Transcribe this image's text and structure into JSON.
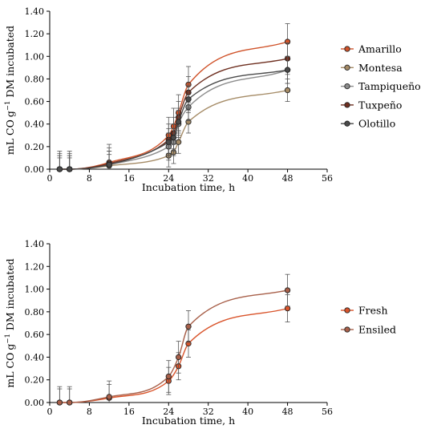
{
  "chart_data": [
    {
      "type": "line",
      "xlabel": "Incubation time, h",
      "ylabel_parts": [
        "mL CO",
        "g",
        "−1",
        " DM incubated"
      ],
      "xlim": [
        0,
        56
      ],
      "ylim": [
        0,
        1.4
      ],
      "xticks": [
        "0",
        "8",
        "16",
        "24",
        "32",
        "40",
        "48",
        "56"
      ],
      "yticks": [
        "0.00",
        "0.20",
        "0.40",
        "0.60",
        "0.80",
        "1.00",
        "1.20",
        "1.40"
      ],
      "grid": false,
      "legend_position": "right",
      "x": [
        2,
        4,
        12,
        24,
        25,
        26,
        28,
        48
      ],
      "series": [
        {
          "name": "Amarillo",
          "color": "#d0532a",
          "values": [
            0.0,
            0.0,
            0.06,
            0.3,
            0.38,
            0.5,
            0.75,
            1.13
          ],
          "errors": [
            0.16,
            0.16,
            0.16,
            0.16,
            0.16,
            0.16,
            0.16,
            0.16
          ]
        },
        {
          "name": "Montesa",
          "color": "#a58b66",
          "values": [
            0.0,
            0.0,
            0.03,
            0.12,
            0.15,
            0.24,
            0.42,
            0.7
          ],
          "errors": [
            0.1,
            0.1,
            0.1,
            0.1,
            0.1,
            0.1,
            0.1,
            0.1
          ]
        },
        {
          "name": "Tampiqueño",
          "color": "#8c8c8c",
          "values": [
            0.0,
            0.0,
            0.04,
            0.2,
            0.24,
            0.4,
            0.55,
            0.88
          ],
          "errors": [
            0.12,
            0.12,
            0.12,
            0.12,
            0.12,
            0.12,
            0.12,
            0.12
          ]
        },
        {
          "name": "Tuxpeño",
          "color": "#6e2f20",
          "values": [
            0.0,
            0.0,
            0.05,
            0.26,
            0.32,
            0.46,
            0.68,
            0.98
          ],
          "errors": [
            0.14,
            0.14,
            0.14,
            0.14,
            0.14,
            0.14,
            0.14,
            0.14
          ]
        },
        {
          "name": "Olotillo",
          "color": "#4a4a4a",
          "values": [
            0.0,
            0.0,
            0.04,
            0.24,
            0.28,
            0.42,
            0.62,
            0.88
          ],
          "errors": [
            0.12,
            0.12,
            0.12,
            0.12,
            0.12,
            0.12,
            0.12,
            0.12
          ]
        }
      ]
    },
    {
      "type": "line",
      "xlabel": "Incubation time, h",
      "ylabel_parts": [
        "mL CO",
        "g",
        "−1",
        " DM incubated"
      ],
      "xlim": [
        0,
        56
      ],
      "ylim": [
        0,
        1.4
      ],
      "xticks": [
        "0",
        "8",
        "16",
        "24",
        "32",
        "40",
        "48",
        "56"
      ],
      "yticks": [
        "0.00",
        "0.20",
        "0.40",
        "0.60",
        "0.80",
        "1.00",
        "1.20",
        "1.40"
      ],
      "grid": false,
      "legend_position": "right",
      "x": [
        2,
        4,
        12,
        24,
        26,
        28,
        48
      ],
      "series": [
        {
          "name": "Fresh",
          "color": "#d9542b",
          "values": [
            0.0,
            0.0,
            0.04,
            0.19,
            0.32,
            0.52,
            0.83
          ],
          "errors": [
            0.12,
            0.12,
            0.12,
            0.12,
            0.12,
            0.12,
            0.12
          ]
        },
        {
          "name": "Ensiled",
          "color": "#a8604a",
          "values": [
            0.0,
            0.0,
            0.05,
            0.23,
            0.4,
            0.67,
            0.99
          ],
          "errors": [
            0.14,
            0.14,
            0.14,
            0.14,
            0.14,
            0.14,
            0.14
          ]
        }
      ]
    }
  ]
}
